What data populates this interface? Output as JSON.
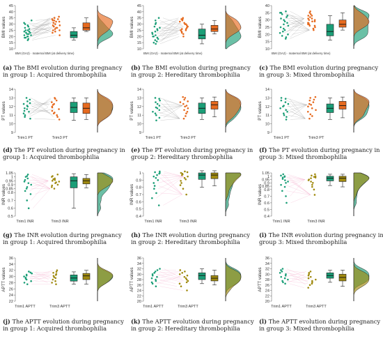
{
  "colors": {
    "teal": "#1b9e77",
    "orange": "#e66a1f",
    "olive": "#a08a10",
    "pink": "#f4a7c9",
    "line_gray": "#9a9a9a"
  },
  "chart_data": [
    {
      "type": "scatter",
      "subtype": "raincloud-paired",
      "panel": "a",
      "caption_label": "(a)",
      "caption_text": "The BMI evolution during pregnancy in group 1: Acquired thrombophilia",
      "ylabel": "BMI values",
      "ylim": [
        10,
        45
      ],
      "yticks": [
        10,
        15,
        20,
        25,
        30,
        35,
        40,
        45
      ],
      "groups": [
        "",
        ""
      ],
      "note": "BMI (GA2) · maternal BMI (at delivery time)",
      "colors": [
        "#1b9e77",
        "#e66a1f"
      ],
      "box1": {
        "q1": 19,
        "median": 21,
        "q3": 24,
        "min": 17,
        "max": 27
      },
      "box2": {
        "q1": 25,
        "median": 27,
        "q3": 31,
        "min": 24,
        "max": 35
      },
      "pts1": [
        17,
        18,
        19,
        19,
        20,
        20,
        21,
        21,
        22,
        22,
        23,
        23,
        24,
        24,
        25,
        25,
        26,
        27,
        28,
        29,
        30,
        31,
        33
      ],
      "pts2": [
        21,
        23,
        24,
        25,
        25,
        26,
        27,
        27,
        28,
        29,
        29,
        30,
        31,
        32,
        33,
        33,
        34,
        35,
        35,
        34,
        32,
        31,
        36
      ]
    },
    {
      "type": "scatter",
      "subtype": "raincloud-paired",
      "panel": "b",
      "caption_label": "(b)",
      "caption_text": "The BMI evolution during pregnancy in group 2: Hereditary thrombophilia",
      "ylabel": "BMI values",
      "ylim": [
        10,
        45
      ],
      "yticks": [
        10,
        15,
        20,
        25,
        30,
        35,
        40,
        45
      ],
      "groups": [
        "",
        ""
      ],
      "note": "BMI (GA2) · maternal BMI (at delivery time)",
      "colors": [
        "#1b9e77",
        "#e66a1f"
      ],
      "box1": {
        "q1": 18,
        "median": 21,
        "q3": 26,
        "min": 14,
        "max": 30
      },
      "box2": {
        "q1": 24,
        "median": 26,
        "q3": 29,
        "min": 22,
        "max": 33
      },
      "pts1": [
        14,
        15,
        16,
        17,
        18,
        19,
        20,
        20,
        21,
        22,
        23,
        24,
        25,
        26,
        27,
        28,
        30,
        31,
        33,
        35
      ],
      "pts2": [
        20,
        22,
        23,
        24,
        25,
        25,
        26,
        26,
        27,
        28,
        28,
        29,
        30,
        30,
        31,
        32,
        33,
        34,
        34,
        35
      ]
    },
    {
      "type": "scatter",
      "subtype": "raincloud-paired",
      "panel": "c",
      "caption_label": "(c)",
      "caption_text": "The BMI evolution during pregnancy in group 3: Mixed thrombophilia",
      "ylabel": "BMI values",
      "ylim": [
        10,
        40
      ],
      "yticks": [
        10,
        15,
        20,
        25,
        30,
        35,
        40
      ],
      "groups": [
        "",
        ""
      ],
      "note": "BMI (GA2) · maternal BMI (at delivery time)",
      "colors": [
        "#1b9e77",
        "#e66a1f"
      ],
      "box1": {
        "q1": 19,
        "median": 22,
        "q3": 27,
        "min": 16,
        "max": 33
      },
      "box2": {
        "q1": 25,
        "median": 27,
        "q3": 30,
        "min": 23,
        "max": 35
      },
      "pts1": [
        17,
        18,
        19,
        20,
        21,
        22,
        23,
        24,
        25,
        26,
        27,
        28,
        29,
        30,
        31,
        32,
        33,
        34,
        35,
        35,
        36
      ],
      "pts2": [
        23,
        24,
        25,
        26,
        26,
        27,
        27,
        28,
        28,
        29,
        29,
        30,
        30,
        31,
        31,
        32,
        33,
        33,
        34,
        35,
        36
      ]
    },
    {
      "type": "scatter",
      "subtype": "raincloud-paired",
      "panel": "d",
      "caption_label": "(d)",
      "caption_text": "The PT evolution during pregnancy in group 1: Acquired thrombophilia",
      "ylabel": "PT values",
      "ylim": [
        9,
        14
      ],
      "yticks": [
        9,
        10,
        11,
        12,
        13,
        14
      ],
      "groups": [
        "Trim1 PT",
        "Trim3 PT"
      ],
      "note": "",
      "colors": [
        "#1b9e77",
        "#e66a1f"
      ],
      "box1": {
        "q1": 11.3,
        "median": 11.9,
        "q3": 12.5,
        "min": 10.4,
        "max": 13.0
      },
      "box2": {
        "q1": 11.2,
        "median": 11.8,
        "q3": 12.4,
        "min": 10.5,
        "max": 13.0
      },
      "pts1": [
        10.6,
        10.8,
        11.0,
        11.2,
        11.4,
        11.5,
        11.7,
        11.8,
        12.0,
        12.1,
        12.3,
        12.4,
        12.6,
        12.8,
        13.0
      ],
      "pts2": [
        10.5,
        10.8,
        11.0,
        11.2,
        11.3,
        11.5,
        11.7,
        11.9,
        12.0,
        12.2,
        12.3,
        12.5,
        12.7,
        12.9,
        13.0
      ]
    },
    {
      "type": "scatter",
      "subtype": "raincloud-paired",
      "panel": "e",
      "caption_label": "(e)",
      "caption_text": "The PT evolution during pregnancy in group 2: Hereditary thrombophilia",
      "ylabel": "PT values",
      "ylim": [
        9,
        14
      ],
      "yticks": [
        9,
        10,
        11,
        12,
        13,
        14
      ],
      "groups": [
        "Trim1 PT",
        "Trim3 PT"
      ],
      "note": "",
      "colors": [
        "#1b9e77",
        "#e66a1f"
      ],
      "box1": {
        "q1": 11.2,
        "median": 11.8,
        "q3": 12.4,
        "min": 10.5,
        "max": 13.0
      },
      "box2": {
        "q1": 11.7,
        "median": 12.2,
        "q3": 12.6,
        "min": 10.8,
        "max": 13.1
      },
      "pts1": [
        10.4,
        10.7,
        11.0,
        11.2,
        11.4,
        11.6,
        11.8,
        11.9,
        12.1,
        12.3,
        12.5,
        12.7,
        12.9,
        13.0
      ],
      "pts2": [
        10.6,
        10.9,
        11.2,
        11.4,
        11.6,
        11.8,
        12.0,
        12.1,
        12.3,
        12.5,
        12.6,
        12.8,
        13.0,
        13.1
      ]
    },
    {
      "type": "scatter",
      "subtype": "raincloud-paired",
      "panel": "f",
      "caption_label": "(f)",
      "caption_text": "The PT evolution during pregnancy in group 3: Mixed thrombophilia",
      "ylabel": "PT values",
      "ylim": [
        9,
        14
      ],
      "yticks": [
        9,
        10,
        11,
        12,
        13,
        14
      ],
      "groups": [
        "Trim1 PT",
        "Trim3 PT"
      ],
      "note": "",
      "colors": [
        "#1b9e77",
        "#e66a1f"
      ],
      "box1": {
        "q1": 11.3,
        "median": 11.8,
        "q3": 12.3,
        "min": 10.5,
        "max": 13.0
      },
      "box2": {
        "q1": 11.7,
        "median": 12.1,
        "q3": 12.6,
        "min": 10.7,
        "max": 13.1
      },
      "pts1": [
        10.5,
        10.8,
        11.0,
        11.2,
        11.4,
        11.6,
        11.8,
        12.0,
        12.1,
        12.3,
        12.5,
        12.7,
        12.9,
        13.0
      ],
      "pts2": [
        10.6,
        10.9,
        11.1,
        11.4,
        11.6,
        11.8,
        12.0,
        12.2,
        12.3,
        12.5,
        12.7,
        12.8,
        13.0,
        13.1
      ]
    },
    {
      "type": "scatter",
      "subtype": "raincloud-paired",
      "panel": "g",
      "caption_label": "(g)",
      "caption_text": "The INR evolution during pregnancy in group 1: Acquired thrombophilia",
      "ylabel": "INR values",
      "ylim": [
        0.5,
        1.05
      ],
      "yticks": [
        0.5,
        0.6,
        0.7,
        0.8,
        0.85,
        0.9,
        0.95,
        1.0,
        1.05
      ],
      "groups": [
        "Trim1 INR",
        "Trim3 INR"
      ],
      "note": "",
      "colors": [
        "#1b9e77",
        "#a08a10"
      ],
      "box1": {
        "q1": 0.86,
        "median": 0.95,
        "q3": 1.0,
        "min": 0.6,
        "max": 1.04
      },
      "box2": {
        "q1": 0.91,
        "median": 0.95,
        "q3": 0.98,
        "min": 0.86,
        "max": 1.03
      },
      "pts1": [
        0.6,
        0.7,
        0.78,
        0.82,
        0.85,
        0.87,
        0.9,
        0.92,
        0.94,
        0.96,
        0.98,
        1.0,
        1.01,
        1.03
      ],
      "pts2": [
        0.85,
        0.87,
        0.89,
        0.9,
        0.92,
        0.93,
        0.94,
        0.95,
        0.96,
        0.97,
        0.98,
        1.0,
        1.01,
        1.03
      ]
    },
    {
      "type": "scatter",
      "subtype": "raincloud-paired",
      "panel": "h",
      "caption_label": "(h)",
      "caption_text": "The INR evolution during pregnancy in group 2: Hereditary thrombophilia",
      "ylabel": "INR values",
      "ylim": [
        0.4,
        1.0
      ],
      "yticks": [
        0.4,
        0.5,
        0.6,
        0.7,
        0.8,
        0.9,
        1.0
      ],
      "groups": [
        "Trim1 INR",
        "Trim3 INR"
      ],
      "note": "",
      "colors": [
        "#1b9e77",
        "#a08a10"
      ],
      "box1": {
        "q1": 0.91,
        "median": 0.97,
        "q3": 1.0,
        "min": 0.8,
        "max": 1.03
      },
      "box2": {
        "q1": 0.92,
        "median": 0.97,
        "q3": 1.0,
        "min": 0.82,
        "max": 1.03
      },
      "pts1": [
        0.55,
        0.65,
        0.72,
        0.78,
        0.82,
        0.86,
        0.9,
        0.93,
        0.95,
        0.97,
        0.99,
        1.0,
        1.01,
        1.02
      ],
      "pts2": [
        0.7,
        0.78,
        0.83,
        0.86,
        0.89,
        0.91,
        0.93,
        0.95,
        0.97,
        0.98,
        0.99,
        1.0,
        1.01,
        1.02
      ]
    },
    {
      "type": "scatter",
      "subtype": "raincloud-paired",
      "panel": "i",
      "caption_label": "(i)",
      "caption_text": "The INR evolution during pregnancy in group 3: Mixed thrombophilia",
      "ylabel": "INR values",
      "ylim": [
        0.4,
        1.05
      ],
      "yticks": [
        0.4,
        0.5,
        0.6,
        0.7,
        0.8,
        0.85,
        0.9,
        0.95,
        1.0,
        1.05
      ],
      "groups": [
        "Trim1 INR",
        "Trim3 INR"
      ],
      "note": "",
      "colors": [
        "#1b9e77",
        "#a08a10"
      ],
      "box1": {
        "q1": 0.93,
        "median": 0.97,
        "q3": 1.0,
        "min": 0.86,
        "max": 1.03
      },
      "box2": {
        "q1": 0.92,
        "median": 0.97,
        "q3": 1.0,
        "min": 0.84,
        "max": 1.03
      },
      "pts1": [
        0.6,
        0.7,
        0.78,
        0.84,
        0.87,
        0.9,
        0.92,
        0.94,
        0.96,
        0.98,
        0.99,
        1.0,
        1.01,
        1.03
      ],
      "pts2": [
        0.72,
        0.8,
        0.84,
        0.87,
        0.9,
        0.92,
        0.94,
        0.95,
        0.97,
        0.98,
        0.99,
        1.0,
        1.01,
        1.03
      ]
    },
    {
      "type": "scatter",
      "subtype": "raincloud-paired",
      "panel": "j",
      "caption_label": "(j)",
      "caption_text": "The APTT evolution during pregnancy in group 1: Acquired thrombophilia",
      "ylabel": "APTT values",
      "ylim": [
        22,
        36
      ],
      "yticks": [
        22,
        24,
        26,
        28,
        30,
        32,
        34,
        36
      ],
      "groups": [
        "Trim1 APTT",
        "Trim3 APTT"
      ],
      "note": "",
      "colors": [
        "#1b9e77",
        "#a08a10"
      ],
      "box1": {
        "q1": 28.5,
        "median": 29.5,
        "q3": 30.5,
        "min": 27.5,
        "max": 31.5
      },
      "box2": {
        "q1": 29.0,
        "median": 30.2,
        "q3": 31.0,
        "min": 27.5,
        "max": 32.0
      },
      "pts1": [
        27.5,
        28.0,
        28.5,
        29.0,
        29.3,
        29.6,
        30.0,
        30.3,
        30.6,
        31.0,
        31.3,
        31.6
      ],
      "pts2": [
        27.5,
        28.0,
        28.5,
        29.0,
        29.5,
        29.8,
        30.2,
        30.5,
        30.8,
        31.2,
        31.5,
        32.0
      ]
    },
    {
      "type": "scatter",
      "subtype": "raincloud-paired",
      "panel": "k",
      "caption_label": "(k)",
      "caption_text": "The APTT evolution during pregnancy in group 2: Hereditary thrombophilia",
      "ylabel": "APTT values",
      "ylim": [
        20,
        36
      ],
      "yticks": [
        20,
        22,
        24,
        26,
        28,
        30,
        32,
        34,
        36
      ],
      "groups": [
        "Trim1 APTT",
        "Trim3 APTT"
      ],
      "note": "",
      "colors": [
        "#1b9e77",
        "#a08a10"
      ],
      "box1": {
        "q1": 28.0,
        "median": 29.5,
        "q3": 30.5,
        "min": 26.5,
        "max": 32.0
      },
      "box2": {
        "q1": 27.5,
        "median": 28.5,
        "q3": 29.5,
        "min": 26.0,
        "max": 31.5
      },
      "pts1": [
        25.5,
        26.5,
        27.0,
        27.5,
        28.0,
        28.5,
        29.0,
        29.5,
        30.0,
        30.5,
        31.0,
        31.5,
        32.0
      ],
      "pts2": [
        24.0,
        25.5,
        26.5,
        27.0,
        27.5,
        28.0,
        28.5,
        29.0,
        29.5,
        30.0,
        30.5,
        31.0,
        31.5
      ]
    },
    {
      "type": "scatter",
      "subtype": "raincloud-paired",
      "panel": "l",
      "caption_label": "(l)",
      "caption_text": "The APTT evolution during pregnancy in group 3: Mixed thrombophilia",
      "ylabel": "APTT values",
      "ylim": [
        20,
        36
      ],
      "yticks": [
        20,
        22,
        24,
        26,
        28,
        30,
        32,
        34,
        36
      ],
      "groups": [
        "Trim1 APTT",
        "Trim3 APTT"
      ],
      "note": "",
      "colors": [
        "#1b9e77",
        "#a08a10"
      ],
      "box1": {
        "q1": 28.5,
        "median": 29.5,
        "q3": 30.5,
        "min": 27.0,
        "max": 31.5
      },
      "box2": {
        "q1": 27.5,
        "median": 28.8,
        "q3": 30.0,
        "min": 25.5,
        "max": 31.5
      },
      "pts1": [
        26.5,
        27.0,
        27.5,
        28.0,
        28.5,
        29.0,
        29.5,
        30.0,
        30.5,
        31.0,
        31.5,
        32.0
      ],
      "pts2": [
        25.0,
        26.0,
        26.5,
        27.0,
        27.5,
        28.0,
        28.5,
        29.0,
        29.5,
        30.0,
        30.5,
        31.0
      ]
    }
  ]
}
